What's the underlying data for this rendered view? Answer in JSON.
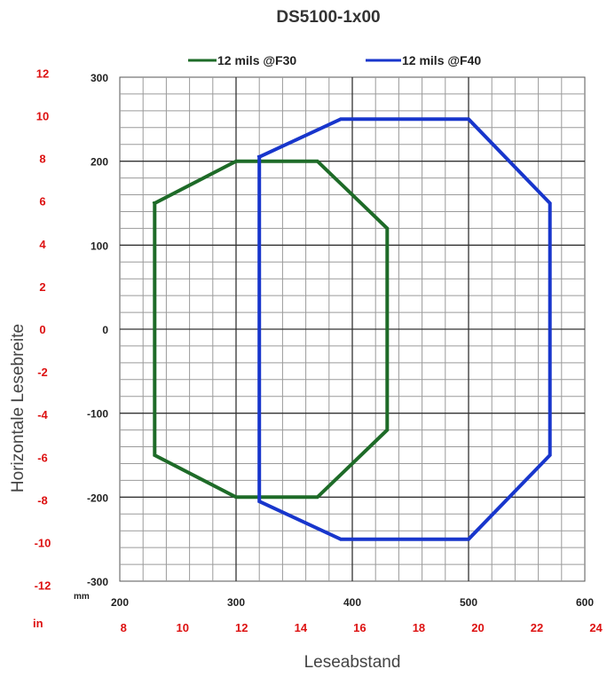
{
  "chart_data": {
    "type": "line",
    "title": "DS5100-1x00",
    "xlabel": "Leseabstand",
    "ylabel": "Horizontale Lesebreite",
    "x_unit_primary": "mm",
    "x_unit_secondary": "in",
    "xlim": [
      200,
      600
    ],
    "ylim": [
      -300,
      300
    ],
    "x_ticks_mm": [
      "200",
      "300",
      "400",
      "500",
      "600"
    ],
    "x_ticks_mm_values": [
      200,
      300,
      400,
      500,
      600
    ],
    "x_ticks_in": [
      "8",
      "10",
      "12",
      "14",
      "16",
      "18",
      "20",
      "22",
      "24"
    ],
    "x_ticks_in_values": [
      8,
      10,
      12,
      14,
      16,
      18,
      20,
      22,
      24
    ],
    "y_ticks_mm": [
      "300",
      "200",
      "100",
      "0",
      "-100",
      "-200",
      "-300"
    ],
    "y_ticks_mm_values": [
      300,
      200,
      100,
      0,
      -100,
      -200,
      -300
    ],
    "y_ticks_in": [
      "12",
      "10",
      "8",
      "6",
      "4",
      "2",
      "0",
      "-2",
      "-4",
      "-6",
      "-8",
      "-10",
      "-12"
    ],
    "y_ticks_in_values": [
      12,
      10,
      8,
      6,
      4,
      2,
      0,
      -2,
      -4,
      -6,
      -8,
      -10,
      -12
    ],
    "grid": true,
    "legend_position": "top",
    "series": [
      {
        "name": "12 mils @F30",
        "color": "#1e6b28",
        "x": [
          230,
          300,
          370,
          430,
          430,
          370,
          300,
          230,
          230
        ],
        "y": [
          150,
          200,
          200,
          120,
          -120,
          -200,
          -200,
          -150,
          150
        ]
      },
      {
        "name": "12 mils @F40",
        "color": "#1836cc",
        "x": [
          320,
          320,
          390,
          500,
          570,
          570,
          500,
          390,
          320
        ],
        "y": [
          205,
          -205,
          -250,
          -250,
          -150,
          150,
          250,
          250,
          205
        ]
      }
    ]
  }
}
